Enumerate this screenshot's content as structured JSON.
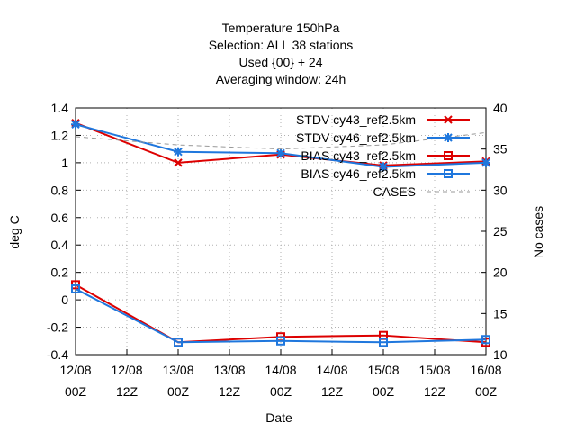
{
  "chart_data": {
    "type": "line",
    "title_lines": [
      "Temperature 150hPa",
      "Selection: ALL      38 stations",
      "Used {00} + 24",
      "Averaging window: 24h"
    ],
    "xlabel": "Date",
    "ylabel": "deg C",
    "y2label": "No cases",
    "x_ticks": [
      {
        "x": 0,
        "line1": "12/08",
        "line2": "00Z"
      },
      {
        "x": 12,
        "line1": "12/08",
        "line2": "12Z"
      },
      {
        "x": 24,
        "line1": "13/08",
        "line2": "00Z"
      },
      {
        "x": 36,
        "line1": "13/08",
        "line2": "12Z"
      },
      {
        "x": 48,
        "line1": "14/08",
        "line2": "00Z"
      },
      {
        "x": 60,
        "line1": "14/08",
        "line2": "12Z"
      },
      {
        "x": 72,
        "line1": "15/08",
        "line2": "00Z"
      },
      {
        "x": 84,
        "line1": "15/08",
        "line2": "12Z"
      },
      {
        "x": 96,
        "line1": "16/08",
        "line2": "00Z"
      }
    ],
    "xlim": [
      0,
      96
    ],
    "ylim": [
      -0.4,
      1.4
    ],
    "y_ticks": [
      "-0.4",
      "-0.2",
      "0",
      "0.2",
      "0.4",
      "0.6",
      "0.8",
      "1",
      "1.2",
      "1.4"
    ],
    "y2lim": [
      10,
      40
    ],
    "y2_ticks": [
      "10",
      "15",
      "20",
      "25",
      "30",
      "35",
      "40"
    ],
    "grid": true,
    "legend_position": "top-right",
    "series": [
      {
        "name": "STDV cy43_ref2.5km",
        "color": "#dd0000",
        "marker": "x",
        "axis": "y1",
        "x": [
          0,
          24,
          48,
          72,
          96
        ],
        "y": [
          1.29,
          1.0,
          1.06,
          0.98,
          1.01
        ]
      },
      {
        "name": "STDV cy46_ref2.5km",
        "color": "#1f77dd",
        "marker": "star",
        "axis": "y1",
        "x": [
          0,
          24,
          48,
          72,
          96
        ],
        "y": [
          1.28,
          1.08,
          1.07,
          0.97,
          1.0
        ]
      },
      {
        "name": "BIAS cy43_ref2.5km",
        "color": "#dd0000",
        "marker": "square",
        "axis": "y1",
        "x": [
          0,
          24,
          48,
          72,
          96
        ],
        "y": [
          0.11,
          -0.31,
          -0.27,
          -0.26,
          -0.31
        ]
      },
      {
        "name": "BIAS cy46_ref2.5km",
        "color": "#1f77dd",
        "marker": "square",
        "axis": "y1",
        "x": [
          0,
          24,
          48,
          72,
          96
        ],
        "y": [
          0.08,
          -0.31,
          -0.3,
          -0.31,
          -0.29
        ]
      },
      {
        "name": "CASES",
        "color": "#999999",
        "marker": "none",
        "dash": true,
        "axis": "y2",
        "x": [
          0,
          24,
          48,
          72,
          96
        ],
        "y": [
          36.5,
          35.5,
          35,
          35.5,
          37
        ]
      }
    ]
  }
}
